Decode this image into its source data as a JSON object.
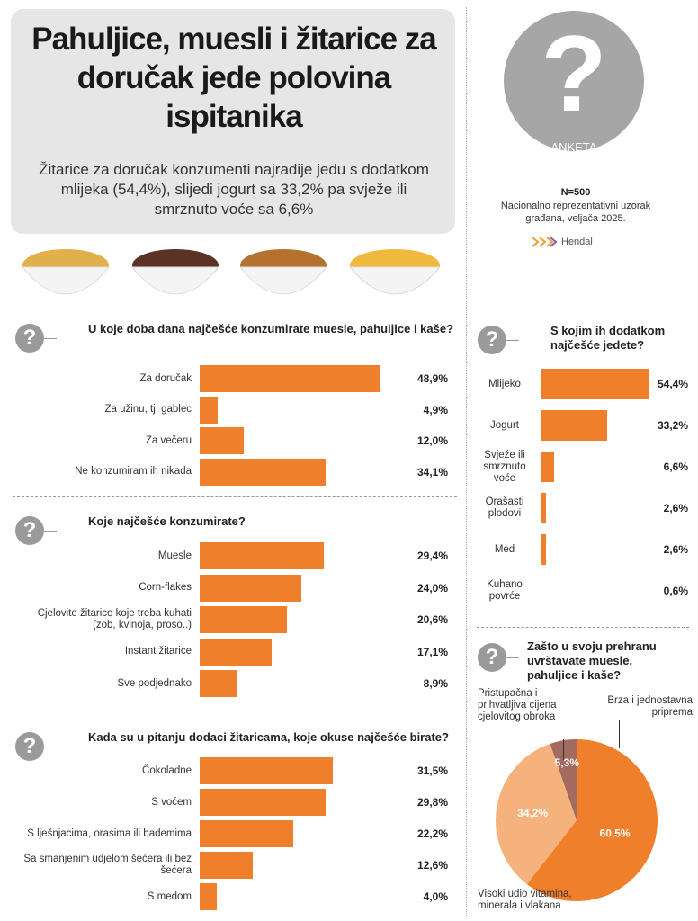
{
  "header": {
    "title": "Pahuljice, muesli i žitarice za doručak jede polovina ispitanika",
    "subtitle": "Žitarice za doručak konzumenti najradije jedu s dodatkom mlijeka (54,4%), slijedi jogurt sa 33,2% pa svježe ili smrznuto voće sa 6,6%"
  },
  "survey": {
    "icon": "?",
    "label": "ANKETA",
    "sample": "N=500",
    "note": "Nacionalno reprezentativni uzorak građana, veljača 2025.",
    "brand": "Hendal"
  },
  "question_icon": "?",
  "chart_data": [
    {
      "type": "bar",
      "title": "U koje doba dana najčešće konzumirate muesle, pahuljice i kaše?",
      "color": "#f07f2c",
      "categories": [
        "Za doručak",
        "Za užinu, tj. gablec",
        "Za večeru",
        "Ne konzumiram ih nikada"
      ],
      "values": [
        48.9,
        4.9,
        12.0,
        34.1
      ],
      "value_labels": [
        "48,9%",
        "4,9%",
        "12,0%",
        "34,1%"
      ]
    },
    {
      "type": "bar",
      "title": "Koje najčešće konzumirate?",
      "color": "#f07f2c",
      "categories": [
        "Muesle",
        "Corn-flakes",
        "Cjelovite žitarice koje treba kuhati (zob, kvinoja, proso..)",
        "Instant žitarice",
        "Sve podjednako"
      ],
      "values": [
        29.4,
        24.0,
        20.6,
        17.1,
        8.9
      ],
      "value_labels": [
        "29,4%",
        "24,0%",
        "20,6%",
        "17,1%",
        "8,9%"
      ]
    },
    {
      "type": "bar",
      "title": "Kada su u pitanju dodaci žitaricama, koje okuse najčešće birate?",
      "color": "#f07f2c",
      "categories": [
        "Čokoladne",
        "S voćem",
        "S lješnjacima, orasima ili bademima",
        "Sa smanjenim udjelom šećera ili bez šećera",
        "S medom"
      ],
      "values": [
        31.5,
        29.8,
        22.2,
        12.6,
        4.0
      ],
      "value_labels": [
        "31,5%",
        "29,8%",
        "22,2%",
        "12,6%",
        "4,0%"
      ]
    },
    {
      "type": "bar",
      "title": "S kojim ih dodatkom najčešće jedete?",
      "color": "#f07f2c",
      "categories": [
        "Mlijeko",
        "Jogurt",
        "Svježe ili smrznuto voće",
        "Orašasti plodovi",
        "Med",
        "Kuhano povrće"
      ],
      "values": [
        54.4,
        33.2,
        6.6,
        2.6,
        2.6,
        0.6
      ],
      "value_labels": [
        "54,4%",
        "33,2%",
        "6,6%",
        "2,6%",
        "2,6%",
        "0,6%"
      ]
    },
    {
      "type": "pie",
      "title": "Zašto u svoju prehranu uvrštavate muesle, pahuljice i kaše?",
      "categories": [
        "Brza i jednostavna priprema",
        "Visoki udio vitamina, minerala i vlakana",
        "Pristupačna i prihvatljiva cijena cjelovitog obroka"
      ],
      "values": [
        60.5,
        34.2,
        5.3
      ],
      "value_labels": [
        "60,5%",
        "34,2%",
        "5,3%"
      ],
      "colors": [
        "#f07f2c",
        "#f6b27c",
        "#a36b5f"
      ]
    }
  ]
}
